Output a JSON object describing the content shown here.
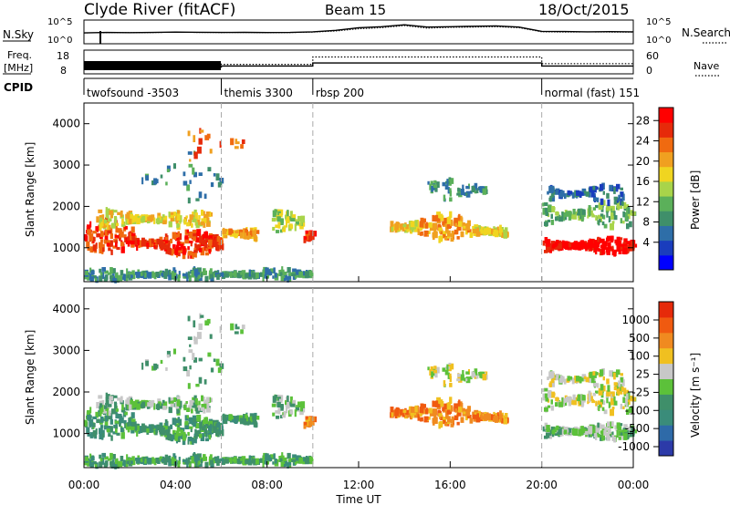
{
  "header": {
    "station": "Clyde River (fitACF)",
    "beam": "Beam 15",
    "date": "18/Oct/2015"
  },
  "labels": {
    "nsky": "N.Sky",
    "nsky_top": "10^5",
    "nsky_bottom": "10^0",
    "nsearch": "N.Search",
    "nsearch_top": "10^5",
    "nsearch_bottom": "10^0",
    "freq_line1": "Freq.",
    "freq_line2": "[MHz]",
    "freq_top": "18",
    "freq_bottom": "8",
    "nave": "Nave",
    "nave_top": "60",
    "nave_bottom": "0",
    "cpid": "CPID"
  },
  "cpid_segments": [
    {
      "name": "twofsound -3503",
      "start_hour": 0.0
    },
    {
      "name": "themis 3300",
      "start_hour": 6.0
    },
    {
      "name": "rbsp 200",
      "start_hour": 10.0
    },
    {
      "name": "normal (fast) 151",
      "start_hour": 20.0
    }
  ],
  "colors": {
    "power_scale": [
      "#0000ff",
      "#1a3dbd",
      "#2e6ea8",
      "#3f8f6a",
      "#5bb05a",
      "#a8d44a",
      "#f0d520",
      "#f0a020",
      "#f06a10",
      "#e62a0a",
      "#ff0000"
    ],
    "velocity_scale": [
      "#2c3aa8",
      "#2e6aa8",
      "#3a8c7a",
      "#3f8f6a",
      "#5cc13a",
      "#c8c8c8",
      "#f0c020",
      "#f08a20",
      "#f05a10",
      "#e62a0a"
    ]
  },
  "chart_data": [
    {
      "type": "line",
      "title": "N.Sky / N.Search",
      "y_scale": "log",
      "ylim": [
        1,
        100000
      ],
      "x": [
        0,
        1,
        2,
        3,
        4,
        5,
        6,
        7,
        8,
        9,
        10,
        11,
        12,
        13,
        14,
        15,
        16,
        17,
        18,
        19,
        20,
        21,
        22,
        23,
        24
      ],
      "series": [
        {
          "name": "N.Sky",
          "values": [
            300,
            400,
            350,
            400,
            500,
            450,
            400,
            420,
            380,
            400,
            600,
            1500,
            8000,
            15000,
            50000,
            12000,
            15000,
            20000,
            25000,
            12000,
            800,
            700,
            600,
            650,
            600
          ]
        },
        {
          "name": "N.Search",
          "values": [
            300,
            350,
            350,
            380,
            450,
            400,
            380,
            400,
            360,
            380,
            500,
            1000,
            4000,
            8000,
            30000,
            6000,
            10000,
            12000,
            15000,
            8000,
            600,
            500,
            550,
            500,
            500
          ]
        }
      ]
    },
    {
      "type": "line",
      "title": "Freq. / Nave",
      "x": [
        0,
        6,
        6,
        10,
        10,
        20,
        20,
        24
      ],
      "series": [
        {
          "name": "Freq.",
          "values": [
            10.5,
            10.5,
            11,
            11,
            12.5,
            12.5,
            11,
            11
          ]
        },
        {
          "name": "Nave",
          "values": [
            25,
            25,
            23,
            23,
            45,
            45,
            25,
            25
          ]
        }
      ]
    },
    {
      "type": "heatmap",
      "xlabel": "Time UT",
      "ylabel": "Slant Range [km]",
      "xlim": [
        0,
        24
      ],
      "ylim": [
        180,
        4500
      ],
      "x_ticks": [
        "00:00",
        "04:00",
        "08:00",
        "12:00",
        "16:00",
        "20:00",
        "00:00"
      ],
      "y_ticks": [
        1000,
        2000,
        3000,
        4000
      ],
      "colorbar_label": "Power [dB]",
      "colorbar_ticks": [
        4,
        8,
        12,
        16,
        20,
        24,
        28
      ]
    },
    {
      "type": "heatmap",
      "xlabel": "Time UT",
      "ylabel": "Slant Range [km]",
      "xlim": [
        0,
        24
      ],
      "ylim": [
        180,
        4500
      ],
      "x_ticks": [
        "00:00",
        "04:00",
        "08:00",
        "12:00",
        "16:00",
        "20:00",
        "00:00"
      ],
      "y_ticks": [
        1000,
        2000,
        3000,
        4000
      ],
      "colorbar_label": "Velocity [m s⁻¹]",
      "colorbar_ticks": [
        "1000",
        "500",
        "100",
        "25",
        "-25",
        "-100",
        "-500",
        "-1000"
      ]
    }
  ]
}
